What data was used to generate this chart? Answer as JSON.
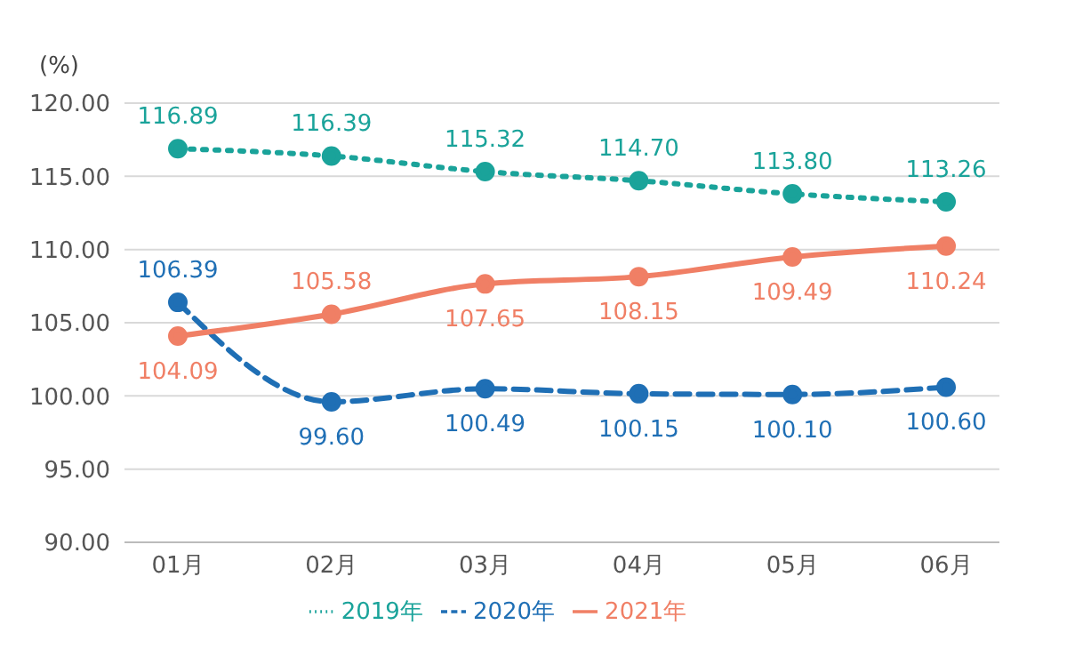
{
  "chart_data": {
    "type": "line",
    "ylabel": "(%)",
    "categories": [
      "01月",
      "02月",
      "03月",
      "04月",
      "05月",
      "06月"
    ],
    "series": [
      {
        "name": "2019年",
        "color": "#1aa39a",
        "line_style": "dotted",
        "values": [
          116.89,
          116.39,
          115.32,
          114.7,
          113.8,
          113.26
        ],
        "value_labels": [
          "116.89",
          "116.39",
          "115.32",
          "114.70",
          "113.80",
          "113.26"
        ]
      },
      {
        "name": "2020年",
        "color": "#1f6fb5",
        "line_style": "dashed",
        "values": [
          106.39,
          99.6,
          100.49,
          100.15,
          100.1,
          100.6
        ],
        "value_labels": [
          "106.39",
          "99.60",
          "100.49",
          "100.15",
          "100.10",
          "100.60"
        ]
      },
      {
        "name": "2021年",
        "color": "#f07f65",
        "line_style": "solid",
        "values": [
          104.09,
          105.58,
          107.65,
          108.15,
          109.49,
          110.24
        ],
        "value_labels": [
          "104.09",
          "105.58",
          "107.65",
          "108.15",
          "109.49",
          "110.24"
        ]
      }
    ],
    "ylim": [
      90,
      120
    ],
    "yticks": [
      {
        "value": 90,
        "label": "90.00"
      },
      {
        "value": 95,
        "label": "95.00"
      },
      {
        "value": 100,
        "label": "100.00"
      },
      {
        "value": 105,
        "label": "105.00"
      },
      {
        "value": 110,
        "label": "110.00"
      },
      {
        "value": 115,
        "label": "115.00"
      },
      {
        "value": 120,
        "label": "120.00"
      }
    ],
    "grid": "y",
    "legend": "bottom",
    "marker": "circle"
  }
}
